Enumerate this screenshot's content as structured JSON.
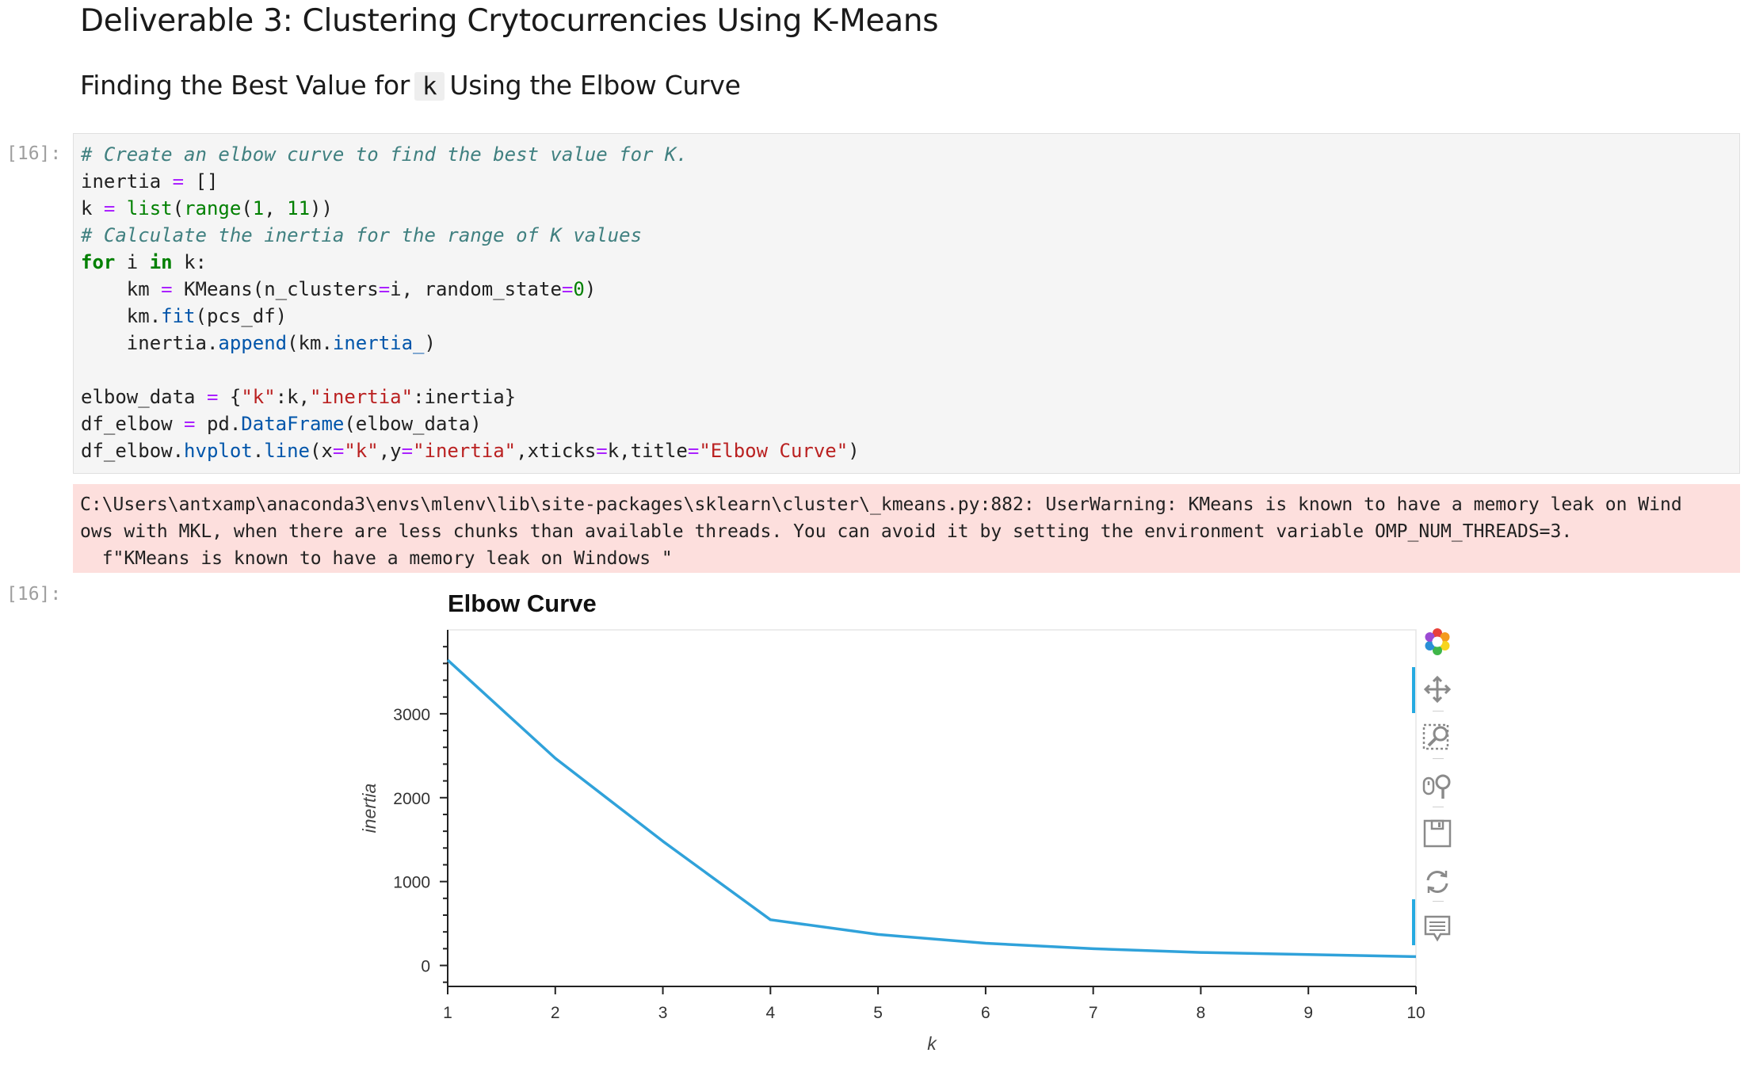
{
  "headings": {
    "title": "Deliverable 3: Clustering Crytocurrencies Using K-Means",
    "subtitle_before": "Finding the Best Value for",
    "subtitle_code": "k",
    "subtitle_after": "Using the Elbow Curve"
  },
  "cell": {
    "input_prompt": "[16]:",
    "output_prompt": "[16]:",
    "code_lines": [
      "# Create an elbow curve to find the best value for K.",
      "inertia = []",
      "k = list(range(1, 11))",
      "# Calculate the inertia for the range of K values",
      "for i in k:",
      "    km = KMeans(n_clusters=i, random_state=0)",
      "    km.fit(pcs_df)",
      "    inertia.append(km.inertia_)",
      "",
      "elbow_data = {\"k\":k,\"inertia\":inertia}",
      "df_elbow = pd.DataFrame(elbow_data)",
      "df_elbow.hvplot.line(x=\"k\",y=\"inertia\",xticks=k,title=\"Elbow Curve\")"
    ],
    "stderr": [
      "C:\\Users\\antxamp\\anaconda3\\envs\\mlenv\\lib\\site-packages\\sklearn\\cluster\\_kmeans.py:882: UserWarning: KMeans is known to have a memory leak on Wind",
      "ows with MKL, when there are less chunks than available threads. You can avoid it by setting the environment variable OMP_NUM_THREADS=3.",
      "  f\"KMeans is known to have a memory leak on Windows \""
    ]
  },
  "chart_data": {
    "type": "line",
    "title": "Elbow Curve",
    "xlabel": "k",
    "ylabel": "inertia",
    "x": [
      1,
      2,
      3,
      4,
      5,
      6,
      7,
      8,
      9,
      10
    ],
    "xticks": [
      "1",
      "2",
      "3",
      "4",
      "5",
      "6",
      "7",
      "8",
      "9",
      "10"
    ],
    "yticks": [
      "0",
      "1000",
      "2000",
      "3000"
    ],
    "series": [
      {
        "values": [
          3640,
          2470,
          1480,
          545,
          370,
          265,
          200,
          155,
          130,
          105
        ]
      }
    ],
    "xlim": [
      1,
      10
    ],
    "ylim": [
      -250,
      4000
    ],
    "grid": false,
    "line_color": "#30a2da"
  },
  "toolbar": {
    "tools": [
      "bokeh-logo-icon",
      "pan-icon",
      "box-zoom-icon",
      "wheel-zoom-icon",
      "save-icon",
      "reset-icon",
      "hover-icon"
    ]
  }
}
